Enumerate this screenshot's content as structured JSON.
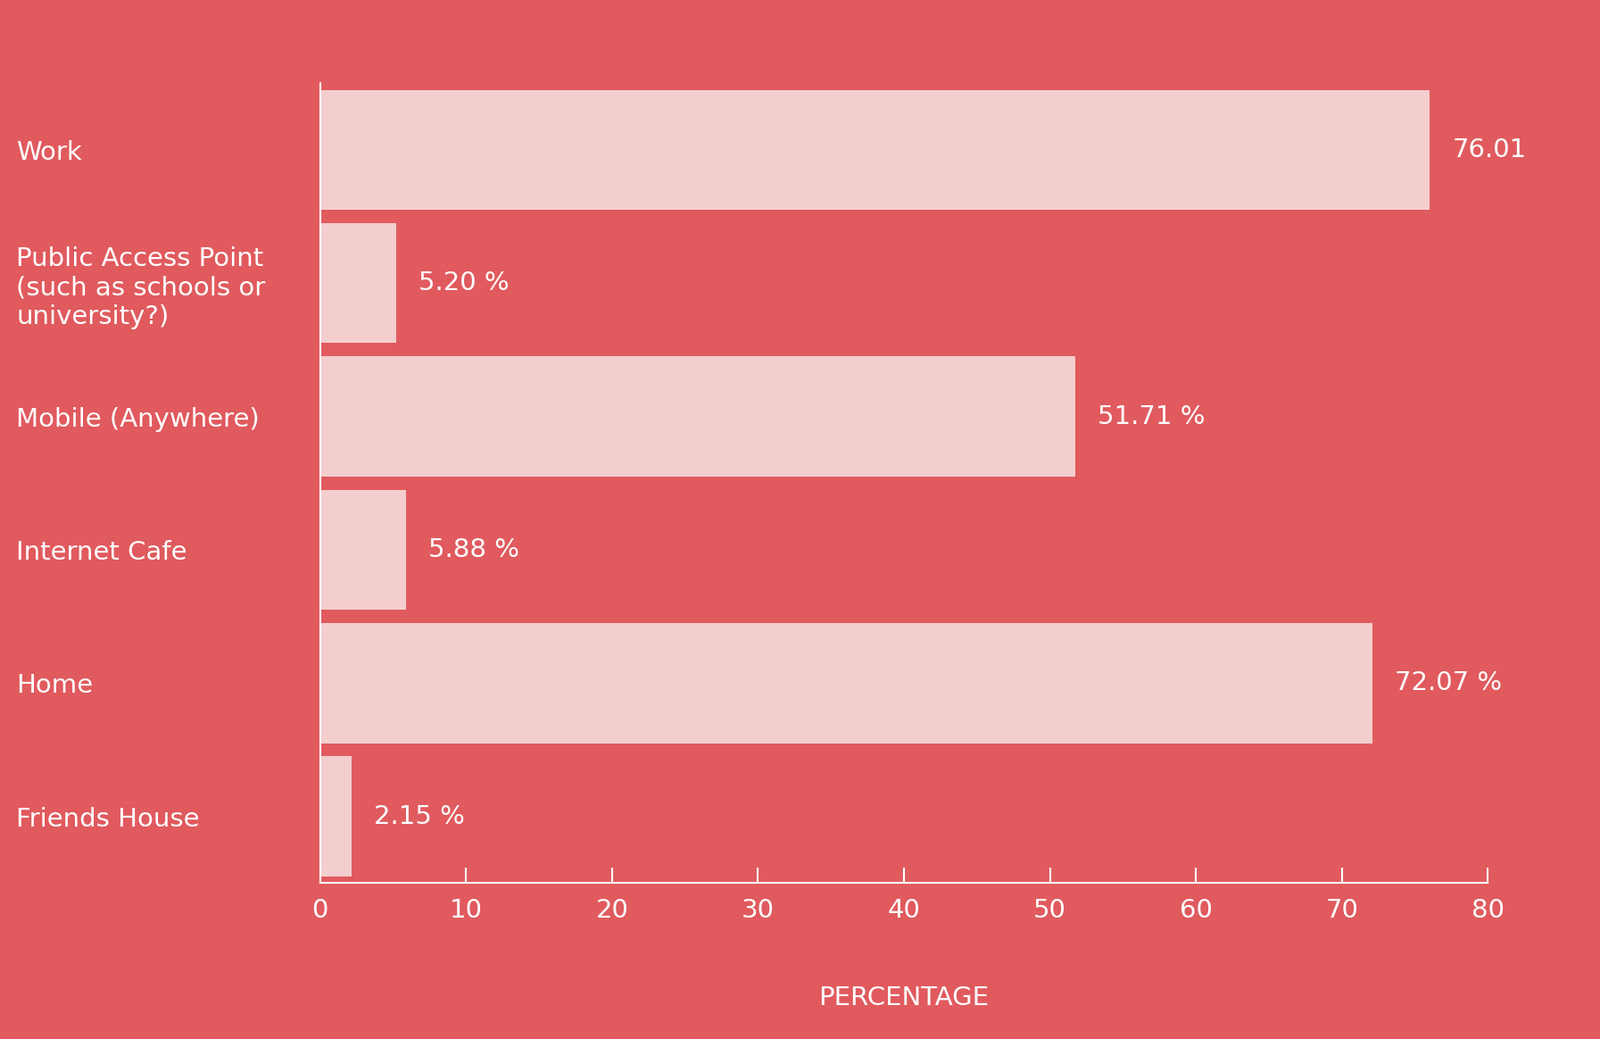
{
  "chart_data": {
    "type": "bar",
    "orientation": "horizontal",
    "categories": [
      "Work",
      "Public Access Point (such as schools or university?)",
      "Mobile (Anywhere)",
      "Internet Cafe",
      "Home",
      "Friends House"
    ],
    "values": [
      76.01,
      5.2,
      51.71,
      5.88,
      72.07,
      2.15
    ],
    "value_labels": [
      "76.01",
      "5.20 %",
      "51.71 %",
      "5.88 %",
      "72.07 %",
      "2.15 %"
    ],
    "data_labels": true,
    "color": "#f7dcdc",
    "x_label": "PERCENTAGE",
    "xlim": [
      0,
      80
    ],
    "xticks": [
      0,
      10,
      20,
      30,
      40,
      50,
      60,
      70,
      80
    ],
    "grid": false
  }
}
